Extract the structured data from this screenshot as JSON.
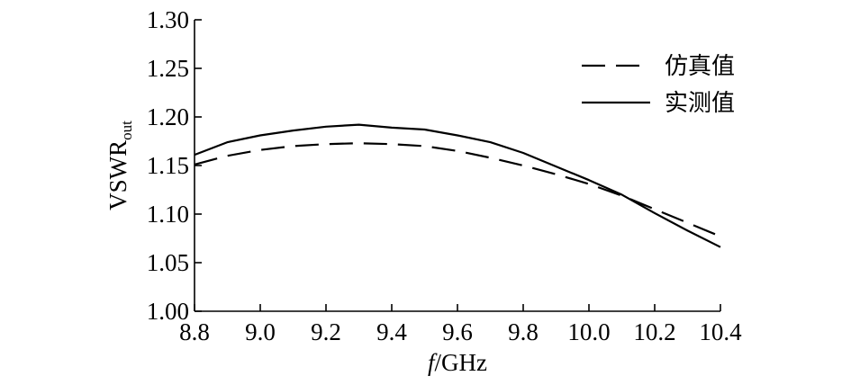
{
  "chart_data": {
    "type": "line",
    "x_axis": {
      "label_italic": "f",
      "label_rest": "/GHz",
      "range": [
        8.8,
        10.4
      ],
      "ticks": [
        "8.8",
        "9.0",
        "9.2",
        "9.4",
        "9.6",
        "9.8",
        "10.0",
        "10.2",
        "10.4"
      ]
    },
    "y_axis": {
      "label_main": "VSWR",
      "label_sub": "out",
      "range": [
        1.0,
        1.3
      ],
      "ticks": [
        "1.00",
        "1.05",
        "1.10",
        "1.15",
        "1.20",
        "1.25",
        "1.30"
      ]
    },
    "grid": false,
    "legend_position": "top-right",
    "series": [
      {
        "name": "仿真值",
        "style": "dashed",
        "color": "#000000",
        "x": [
          8.8,
          8.9,
          9.0,
          9.1,
          9.2,
          9.3,
          9.4,
          9.5,
          9.6,
          9.7,
          9.8,
          9.9,
          10.0,
          10.1,
          10.2,
          10.3,
          10.4
        ],
        "y": [
          1.151,
          1.16,
          1.166,
          1.17,
          1.172,
          1.173,
          1.172,
          1.17,
          1.165,
          1.158,
          1.15,
          1.141,
          1.131,
          1.119,
          1.105,
          1.091,
          1.077
        ]
      },
      {
        "name": "实测值",
        "style": "solid",
        "color": "#000000",
        "x": [
          8.8,
          8.9,
          9.0,
          9.1,
          9.2,
          9.3,
          9.4,
          9.5,
          9.6,
          9.7,
          9.8,
          9.9,
          10.0,
          10.1,
          10.2,
          10.3,
          10.4
        ],
        "y": [
          1.161,
          1.174,
          1.181,
          1.186,
          1.19,
          1.192,
          1.189,
          1.187,
          1.181,
          1.174,
          1.163,
          1.149,
          1.135,
          1.12,
          1.101,
          1.083,
          1.066
        ]
      }
    ]
  }
}
